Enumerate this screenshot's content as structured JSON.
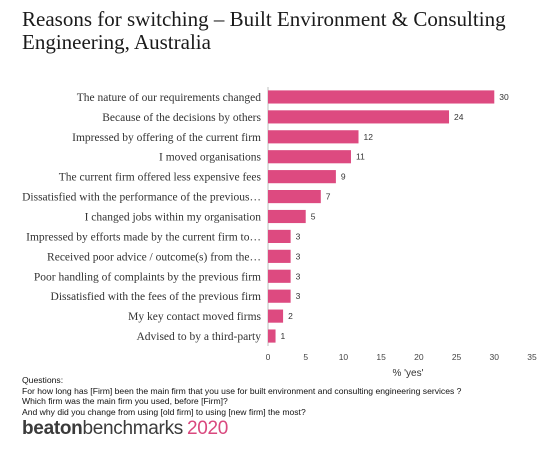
{
  "chart_data": {
    "type": "bar",
    "orientation": "horizontal",
    "title": "Reasons for switching – Built Environment & Consulting Engineering, Australia",
    "categories": [
      "The nature of our requirements changed",
      "Because of the decisions by others",
      "Impressed by offering of the current firm",
      "I moved organisations",
      "The current firm offered less expensive fees",
      "Dissatisfied with the performance of the previous…",
      "I changed jobs within my organisation",
      "Impressed by efforts made by the current firm to…",
      "Received poor advice / outcome(s) from the…",
      "Poor handling of complaints by the previous firm",
      "Dissatisfied with the fees of the previous firm",
      "My key contact moved firms",
      "Advised to by a third-party"
    ],
    "values": [
      30,
      24,
      12,
      11,
      9,
      7,
      5,
      3,
      3,
      3,
      3,
      2,
      1
    ],
    "xlabel": "% 'yes'",
    "xlim": [
      0,
      35
    ],
    "xticks": [
      "0",
      "5",
      "10",
      "15",
      "20",
      "25",
      "30",
      "35"
    ],
    "bar_color": "#dd4a80",
    "grid": false
  },
  "questions": {
    "heading": "Questions:",
    "lines": [
      "For how long has [Firm] been the main firm that you use for built environment and consulting engineering services ?",
      "Which firm was the main firm you used, before [Firm]?",
      "And why did you change from using [old firm] to using [new firm] the most?"
    ]
  },
  "brand": {
    "part1": "beaton",
    "part2": "benchmarks",
    "year": "2020",
    "year_color": "#d9487e"
  }
}
